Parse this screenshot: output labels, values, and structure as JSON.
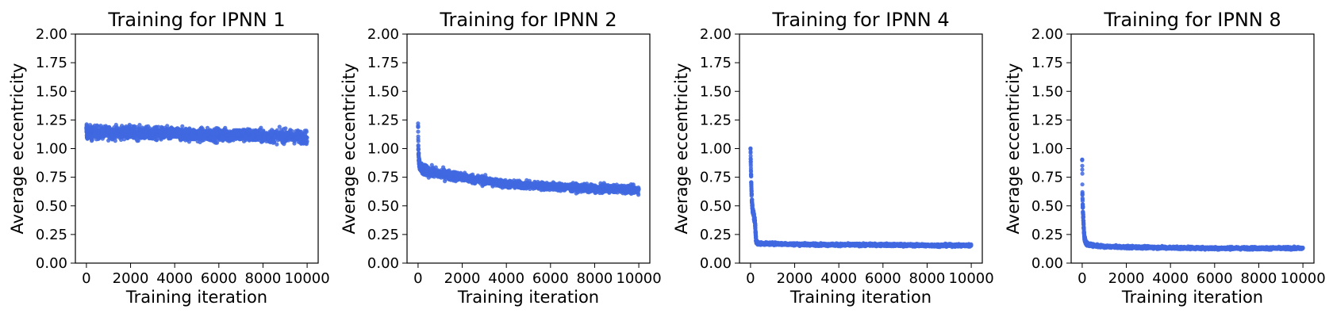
{
  "chart_data": [
    {
      "type": "scatter",
      "title": "Training for IPNN 1",
      "xlabel": "Training iteration",
      "ylabel": "Average eccentricity",
      "xlim": [
        -500,
        10500
      ],
      "ylim": [
        0,
        2
      ],
      "x_ticks": [
        "0",
        "2000",
        "4000",
        "6000",
        "8000",
        "10000"
      ],
      "y_ticks": [
        "0.00",
        "0.25",
        "0.50",
        "0.75",
        "1.00",
        "1.25",
        "1.50",
        "1.75",
        "2.00"
      ],
      "color": "#4169e1",
      "grid": false,
      "series": [
        {
          "x": [
            0,
            10,
            20,
            50,
            100,
            200,
            300,
            500,
            1000,
            2000,
            3000,
            4000,
            5000,
            6000,
            7000,
            8000,
            9000,
            10000
          ],
          "y": [
            1.15,
            1.18,
            1.12,
            1.14,
            1.15,
            1.14,
            1.14,
            1.14,
            1.14,
            1.14,
            1.13,
            1.13,
            1.12,
            1.12,
            1.12,
            1.11,
            1.11,
            1.1
          ],
          "band": [
            0.06,
            0.06,
            0.06,
            0.06,
            0.05,
            0.05,
            0.05,
            0.05,
            0.05,
            0.05,
            0.05,
            0.05,
            0.05,
            0.05,
            0.05,
            0.05,
            0.05,
            0.05
          ]
        }
      ]
    },
    {
      "type": "scatter",
      "title": "Training for IPNN 2",
      "xlabel": "Training iteration",
      "ylabel": "Average eccentricity",
      "xlim": [
        -500,
        10500
      ],
      "ylim": [
        0,
        2
      ],
      "x_ticks": [
        "0",
        "2000",
        "4000",
        "6000",
        "8000",
        "10000"
      ],
      "y_ticks": [
        "0.00",
        "0.25",
        "0.50",
        "0.75",
        "1.00",
        "1.25",
        "1.50",
        "1.75",
        "2.00"
      ],
      "color": "#4169e1",
      "grid": false,
      "series": [
        {
          "x": [
            0,
            10,
            20,
            50,
            100,
            200,
            300,
            500,
            1000,
            2000,
            3000,
            4000,
            5000,
            6000,
            7000,
            8000,
            9000,
            10000
          ],
          "y": [
            1.2,
            1.05,
            0.95,
            0.88,
            0.84,
            0.82,
            0.81,
            0.8,
            0.78,
            0.75,
            0.72,
            0.69,
            0.68,
            0.67,
            0.66,
            0.65,
            0.65,
            0.64
          ],
          "band": [
            0.02,
            0.05,
            0.05,
            0.04,
            0.04,
            0.04,
            0.04,
            0.04,
            0.04,
            0.035,
            0.035,
            0.03,
            0.03,
            0.03,
            0.03,
            0.03,
            0.03,
            0.03
          ]
        }
      ]
    },
    {
      "type": "scatter",
      "title": "Training for IPNN 4",
      "xlabel": "Training iteration",
      "ylabel": "Average eccentricity",
      "xlim": [
        -500,
        10500
      ],
      "ylim": [
        0,
        2
      ],
      "x_ticks": [
        "0",
        "2000",
        "4000",
        "6000",
        "8000",
        "10000"
      ],
      "y_ticks": [
        "0.00",
        "0.25",
        "0.50",
        "0.75",
        "1.00",
        "1.25",
        "1.50",
        "1.75",
        "2.00"
      ],
      "color": "#4169e1",
      "grid": false,
      "series": [
        {
          "x": [
            0,
            10,
            20,
            40,
            60,
            80,
            100,
            150,
            200,
            250,
            300,
            500,
            1000,
            2000,
            4000,
            6000,
            8000,
            10000
          ],
          "y": [
            1.0,
            0.9,
            0.8,
            0.65,
            0.55,
            0.5,
            0.46,
            0.42,
            0.36,
            0.2,
            0.175,
            0.17,
            0.17,
            0.165,
            0.16,
            0.16,
            0.155,
            0.155
          ],
          "band": [
            0.01,
            0.02,
            0.03,
            0.03,
            0.03,
            0.03,
            0.03,
            0.03,
            0.03,
            0.02,
            0.012,
            0.01,
            0.01,
            0.01,
            0.01,
            0.01,
            0.01,
            0.01
          ]
        }
      ]
    },
    {
      "type": "scatter",
      "title": "Training for IPNN 8",
      "xlabel": "Training iteration",
      "ylabel": "Average eccentricity",
      "xlim": [
        -500,
        10500
      ],
      "ylim": [
        0,
        2
      ],
      "x_ticks": [
        "0",
        "2000",
        "4000",
        "6000",
        "8000",
        "10000"
      ],
      "y_ticks": [
        "0.00",
        "0.25",
        "0.50",
        "0.75",
        "1.00",
        "1.25",
        "1.50",
        "1.75",
        "2.00"
      ],
      "color": "#4169e1",
      "grid": false,
      "series": [
        {
          "x": [
            0,
            5,
            10,
            20,
            40,
            60,
            80,
            100,
            150,
            200,
            300,
            500,
            1000,
            2000,
            4000,
            6000,
            8000,
            10000
          ],
          "y": [
            0.9,
            0.8,
            0.62,
            0.52,
            0.42,
            0.35,
            0.28,
            0.22,
            0.19,
            0.17,
            0.16,
            0.155,
            0.145,
            0.14,
            0.135,
            0.13,
            0.13,
            0.13
          ],
          "band": [
            0.01,
            0.02,
            0.03,
            0.03,
            0.03,
            0.03,
            0.03,
            0.02,
            0.02,
            0.015,
            0.012,
            0.01,
            0.01,
            0.01,
            0.01,
            0.01,
            0.01,
            0.01
          ]
        }
      ]
    }
  ]
}
